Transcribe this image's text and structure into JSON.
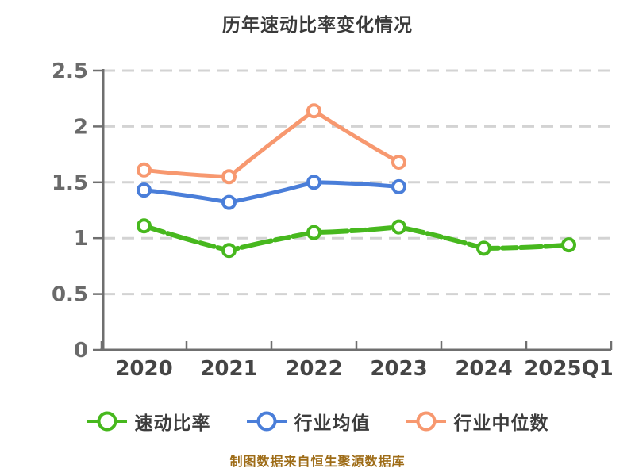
{
  "title": "历年速动比率变化情况",
  "footer": "制图数据来自恒生聚源数据库",
  "colors": {
    "quick_ratio": "#47B81E",
    "industry_avg": "#4A7ED9",
    "industry_median": "#F7986F",
    "grid": "#D3D3D3",
    "axis": "#6F6F6F",
    "y_tick_label": "#6A6A6A",
    "x_tick_label": "#454545",
    "title_text": "#3A3A3A",
    "legend_text": "#3D3D3D",
    "footer_text": "#9E6C17",
    "marker_fill": "#FFFFFF"
  },
  "chart_data": {
    "type": "line",
    "title": "历年速动比率变化情况",
    "categories": [
      "2020",
      "2021",
      "2022",
      "2023",
      "2024",
      "2025Q1"
    ],
    "series": [
      {
        "name": "速动比率",
        "color": "#47B81E",
        "style": "dashed",
        "width": 6,
        "values": [
          1.11,
          0.89,
          1.05,
          1.1,
          0.91,
          0.94
        ]
      },
      {
        "name": "行业均值",
        "color": "#4A7ED9",
        "style": "solid",
        "width": 5,
        "values": [
          1.43,
          1.32,
          1.5,
          1.46,
          null,
          null
        ]
      },
      {
        "name": "行业中位数",
        "color": "#F7986F",
        "style": "solid",
        "width": 5,
        "values": [
          1.61,
          1.55,
          2.14,
          1.68,
          null,
          null
        ]
      }
    ],
    "ylim": [
      0,
      2.5
    ],
    "yticks": [
      0,
      0.5,
      1,
      1.5,
      2,
      2.5
    ],
    "xlabel": "",
    "ylabel": "",
    "grid": "horizontal-dashed",
    "legend_position": "bottom",
    "marker": "circle-white-fill"
  }
}
